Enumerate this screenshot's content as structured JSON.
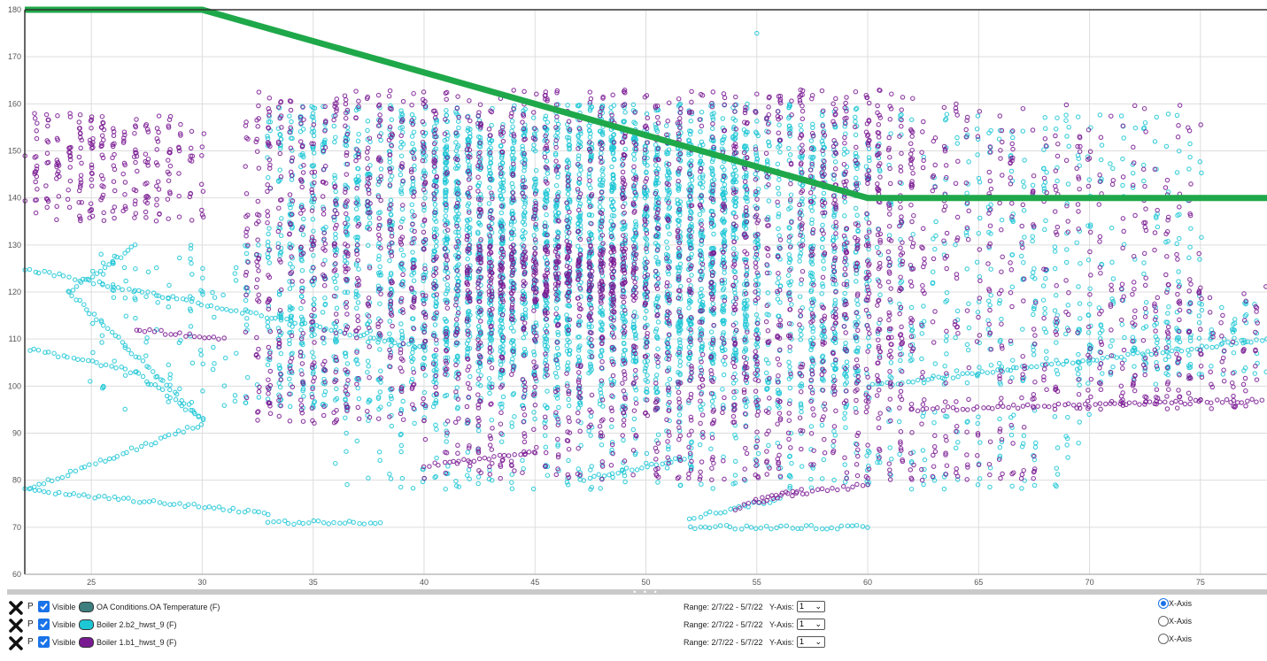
{
  "chart_data": {
    "type": "scatter",
    "title": "",
    "xlabel": "",
    "ylabel": "",
    "xlim": [
      22,
      78
    ],
    "ylim": [
      60,
      180
    ],
    "x_ticks": [
      "25",
      "30",
      "35",
      "40",
      "45",
      "50",
      "55",
      "60",
      "65",
      "70",
      "75"
    ],
    "y_ticks": [
      "60",
      "70",
      "80",
      "90",
      "100",
      "110",
      "120",
      "130",
      "140",
      "150",
      "160",
      "170",
      "180"
    ],
    "grid": true,
    "legend": "bottom panel",
    "series": [
      {
        "name": "OA Conditions.OA Temperature (F)",
        "color": "#1fa84a",
        "kind": "line",
        "points": [
          [
            22,
            180
          ],
          [
            30,
            180
          ],
          [
            60,
            140
          ],
          [
            78,
            140
          ]
        ]
      },
      {
        "name": "Boiler 2.b2_hwst_9 (F)",
        "color": "#1ec7d6",
        "kind": "scatter",
        "clusters": [
          {
            "x": [
              33,
              60
            ],
            "y": [
              95,
              160
            ],
            "n": 2600
          },
          {
            "x": [
              40,
              55
            ],
            "y": [
              105,
              155
            ],
            "n": 1400
          },
          {
            "x": [
              57,
              75
            ],
            "y": [
              100,
              158
            ],
            "n": 500
          },
          {
            "x": [
              68,
              78
            ],
            "y": [
              102,
              118
            ],
            "n": 120
          },
          {
            "x": [
              25,
              35
            ],
            "y": [
              95,
              130
            ],
            "n": 160
          },
          {
            "x": [
              36,
              70
            ],
            "y": [
              78,
              95
            ],
            "n": 300
          }
        ],
        "lines": [
          {
            "from": [
              22,
              78
            ],
            "to": [
              30,
              92
            ]
          },
          {
            "from": [
              22,
              78
            ],
            "to": [
              33,
              73
            ]
          },
          {
            "from": [
              30,
              93
            ],
            "to": [
              27,
              103
            ]
          },
          {
            "from": [
              27,
              103
            ],
            "to": [
              22,
              108
            ]
          },
          {
            "from": [
              30,
              93
            ],
            "to": [
              24,
              120
            ]
          },
          {
            "from": [
              24,
              120
            ],
            "to": [
              27,
              130
            ]
          },
          {
            "from": [
              33,
              71
            ],
            "to": [
              38,
              71
            ]
          },
          {
            "from": [
              52,
              72
            ],
            "to": [
              56,
              76
            ]
          },
          {
            "from": [
              52,
              70
            ],
            "to": [
              60,
              70
            ]
          },
          {
            "from": [
              47,
              80
            ],
            "to": [
              52,
              85
            ]
          },
          {
            "from": [
              60,
              100
            ],
            "to": [
              78,
              110
            ]
          },
          {
            "from": [
              40,
              108
            ],
            "to": [
              22,
              125
            ]
          }
        ],
        "points": [
          [
            55,
            175
          ]
        ]
      },
      {
        "name": "Boiler 1.b1_hwst_9 (F)",
        "color": "#7a1a93",
        "kind": "scatter",
        "clusters": [
          {
            "x": [
              32,
              62
            ],
            "y": [
              92,
              163
            ],
            "n": 2200
          },
          {
            "x": [
              42,
              50
            ],
            "y": [
              118,
              130
            ],
            "n": 300
          },
          {
            "x": [
              22,
              30
            ],
            "y": [
              135,
              158
            ],
            "n": 260
          },
          {
            "x": [
              58,
              75
            ],
            "y": [
              95,
              160
            ],
            "n": 500
          },
          {
            "x": [
              70,
              78
            ],
            "y": [
              95,
              122
            ],
            "n": 120
          },
          {
            "x": [
              40,
              68
            ],
            "y": [
              80,
              92
            ],
            "n": 260
          }
        ],
        "lines": [
          {
            "from": [
              54,
              74
            ],
            "to": [
              57,
              78
            ]
          },
          {
            "from": [
              55,
              76
            ],
            "to": [
              60,
              79
            ]
          },
          {
            "from": [
              40,
              83
            ],
            "to": [
              45,
              86
            ]
          },
          {
            "from": [
              62,
              95
            ],
            "to": [
              78,
              97
            ]
          },
          {
            "from": [
              27,
              112
            ],
            "to": [
              31,
              110
            ]
          }
        ],
        "points": []
      }
    ]
  },
  "legend": {
    "rows": [
      {
        "remove_icon": "close-icon",
        "p": "P",
        "visible_label": "Visible",
        "visible": true,
        "swatch_color": "#3d7e7e",
        "series_name": "OA Conditions.OA Temperature (F)",
        "range": "Range: 2/7/22 - 5/7/22",
        "yaxis_label": "Y-Axis:",
        "yaxis_value": "1",
        "xaxis_label": "X-Axis",
        "xaxis_selected": true
      },
      {
        "remove_icon": "close-icon",
        "p": "P",
        "visible_label": "Visible",
        "visible": true,
        "swatch_color": "#1ec7d6",
        "series_name": "Boiler 2.b2_hwst_9 (F)",
        "range": "Range: 2/7/22 - 5/7/22",
        "yaxis_label": "Y-Axis:",
        "yaxis_value": "1",
        "xaxis_label": "X-Axis",
        "xaxis_selected": false
      },
      {
        "remove_icon": "close-icon",
        "p": "P",
        "visible_label": "Visible",
        "visible": true,
        "swatch_color": "#7a1a93",
        "series_name": "Boiler 1.b1_hwst_9 (F)",
        "range": "Range: 2/7/22 - 5/7/22",
        "yaxis_label": "Y-Axis:",
        "yaxis_value": "1",
        "xaxis_label": "X-Axis",
        "xaxis_selected": false
      }
    ]
  },
  "splitter": {
    "handle": "• • •"
  }
}
